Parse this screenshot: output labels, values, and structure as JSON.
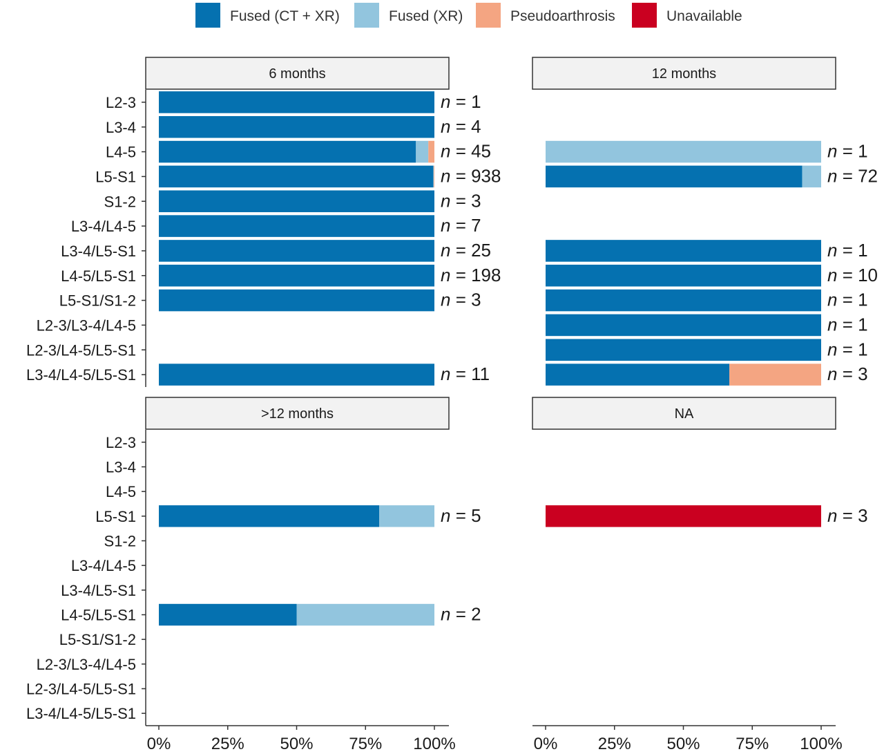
{
  "chart_data": {
    "type": "bar",
    "orientation": "horizontal",
    "stacked": true,
    "legend_position": "top",
    "xlabel": "",
    "ylabel": "",
    "xlim": [
      0,
      100
    ],
    "x_ticks": [
      "0%",
      "25%",
      "50%",
      "75%",
      "100%"
    ],
    "categories": [
      "L2-3",
      "L3-4",
      "L4-5",
      "L5-S1",
      "S1-2",
      "L3-4/L4-5",
      "L3-4/L5-S1",
      "L4-5/L5-S1",
      "L5-S1/S1-2",
      "L2-3/L3-4/L4-5",
      "L2-3/L4-5/L5-S1",
      "L3-4/L4-5/L5-S1"
    ],
    "series_names": [
      "Fused (CT + XR)",
      "Fused (XR)",
      "Pseudoarthrosis",
      "Unavailable"
    ],
    "series_colors": [
      "#0571b0",
      "#92c5de",
      "#f4a582",
      "#ca0020"
    ],
    "n_label_prefix": "n",
    "panels": [
      {
        "title": "6 months",
        "bars": [
          {
            "category": "L2-3",
            "values": [
              100,
              0,
              0,
              0
            ],
            "n": "1"
          },
          {
            "category": "L3-4",
            "values": [
              100,
              0,
              0,
              0
            ],
            "n": "4"
          },
          {
            "category": "L4-5",
            "values": [
              93.3,
              4.5,
              2.2,
              0
            ],
            "n": "45"
          },
          {
            "category": "L5-S1",
            "values": [
              99.6,
              0.2,
              0.2,
              0
            ],
            "n": "938"
          },
          {
            "category": "S1-2",
            "values": [
              100,
              0,
              0,
              0
            ],
            "n": "3"
          },
          {
            "category": "L3-4/L4-5",
            "values": [
              100,
              0,
              0,
              0
            ],
            "n": "7"
          },
          {
            "category": "L3-4/L5-S1",
            "values": [
              100,
              0,
              0,
              0
            ],
            "n": "25"
          },
          {
            "category": "L4-5/L5-S1",
            "values": [
              100,
              0,
              0,
              0
            ],
            "n": "198"
          },
          {
            "category": "L5-S1/S1-2",
            "values": [
              100,
              0,
              0,
              0
            ],
            "n": "3"
          },
          {
            "category": "L3-4/L4-5/L5-S1",
            "values": [
              100,
              0,
              0,
              0
            ],
            "n": "11"
          }
        ]
      },
      {
        "title": "12 months",
        "bars": [
          {
            "category": "L4-5",
            "values": [
              0,
              100,
              0,
              0
            ],
            "n": "1"
          },
          {
            "category": "L5-S1",
            "values": [
              93.1,
              6.9,
              0,
              0
            ],
            "n": "72"
          },
          {
            "category": "L3-4/L5-S1",
            "values": [
              100,
              0,
              0,
              0
            ],
            "n": "1"
          },
          {
            "category": "L4-5/L5-S1",
            "values": [
              100,
              0,
              0,
              0
            ],
            "n": "10"
          },
          {
            "category": "L5-S1/S1-2",
            "values": [
              100,
              0,
              0,
              0
            ],
            "n": "1"
          },
          {
            "category": "L2-3/L3-4/L4-5",
            "values": [
              100,
              0,
              0,
              0
            ],
            "n": "1"
          },
          {
            "category": "L2-3/L4-5/L5-S1",
            "values": [
              100,
              0,
              0,
              0
            ],
            "n": "1"
          },
          {
            "category": "L3-4/L4-5/L5-S1",
            "values": [
              66.7,
              0,
              33.3,
              0
            ],
            "n": "3"
          }
        ]
      },
      {
        "title": ">12 months",
        "bars": [
          {
            "category": "L5-S1",
            "values": [
              80,
              20,
              0,
              0
            ],
            "n": "5"
          },
          {
            "category": "L4-5/L5-S1",
            "values": [
              50,
              50,
              0,
              0
            ],
            "n": "2"
          }
        ]
      },
      {
        "title": "NA",
        "bars": [
          {
            "category": "L5-S1",
            "values": [
              0,
              0,
              0,
              100
            ],
            "n": "3"
          }
        ]
      }
    ]
  }
}
